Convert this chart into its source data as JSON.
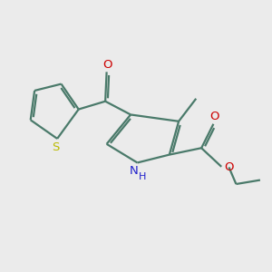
{
  "background_color": "#ebebeb",
  "bond_color": "#4a7a6a",
  "S_color": "#bbbb00",
  "N_color": "#2222cc",
  "O_color": "#cc0000",
  "line_width": 1.6,
  "figsize": [
    3.0,
    3.0
  ],
  "dpi": 100,
  "xlim": [
    0,
    10
  ],
  "ylim": [
    0,
    10
  ]
}
